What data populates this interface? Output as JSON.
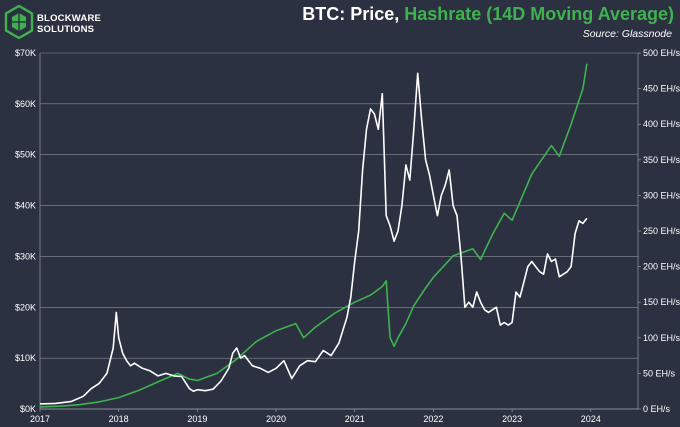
{
  "logo": {
    "line1": "BLOCKWARE",
    "line2": "SOLUTIONS",
    "icon": "blockware-logo-icon",
    "color": "#3fb24f"
  },
  "title": {
    "part1": "BTC: Price,",
    "part2": "Hashrate (14D Moving Average)"
  },
  "source": "Source: Glassnode",
  "colors": {
    "background": "#2b3140",
    "price_line": "#ffffff",
    "hashrate_line": "#3fb24f",
    "grid": "#8a8f9a"
  },
  "chart_data": {
    "type": "line",
    "title": "BTC: Price, Hashrate (14D Moving Average)",
    "x_ticks": [
      "2017",
      "2018",
      "2019",
      "2020",
      "2021",
      "2022",
      "2023",
      "2024"
    ],
    "x_range": [
      2017.0,
      2024.6
    ],
    "y_left": {
      "label": "",
      "range": [
        0,
        70000
      ],
      "ticks": [
        "$0K",
        "$10K",
        "$20K",
        "$30K",
        "$40K",
        "$50K",
        "$60K",
        "$70K"
      ]
    },
    "y_right": {
      "label": "",
      "range": [
        0,
        500
      ],
      "ticks": [
        "0 EH/s",
        "50 EH/s",
        "100 EH/s",
        "150 EH/s",
        "200 EH/s",
        "250 EH/s",
        "300 EH/s",
        "350 EH/s",
        "400 EH/s",
        "450 EH/s",
        "500 EH/s"
      ]
    },
    "grid": true,
    "legend": "none",
    "series": [
      {
        "name": "Price",
        "axis": "left",
        "x": [
          2017.0,
          2017.2,
          2017.4,
          2017.55,
          2017.65,
          2017.75,
          2017.85,
          2017.93,
          2017.97,
          2018.0,
          2018.05,
          2018.1,
          2018.15,
          2018.2,
          2018.3,
          2018.4,
          2018.5,
          2018.6,
          2018.7,
          2018.8,
          2018.9,
          2018.95,
          2019.0,
          2019.1,
          2019.2,
          2019.3,
          2019.4,
          2019.45,
          2019.5,
          2019.55,
          2019.6,
          2019.7,
          2019.8,
          2019.9,
          2020.0,
          2020.1,
          2020.2,
          2020.3,
          2020.4,
          2020.5,
          2020.6,
          2020.7,
          2020.8,
          2020.85,
          2020.9,
          2020.95,
          2021.0,
          2021.05,
          2021.1,
          2021.15,
          2021.2,
          2021.25,
          2021.3,
          2021.35,
          2021.4,
          2021.45,
          2021.5,
          2021.55,
          2021.6,
          2021.65,
          2021.7,
          2021.75,
          2021.8,
          2021.85,
          2021.9,
          2021.95,
          2022.0,
          2022.05,
          2022.1,
          2022.15,
          2022.2,
          2022.25,
          2022.3,
          2022.35,
          2022.4,
          2022.45,
          2022.5,
          2022.55,
          2022.6,
          2022.65,
          2022.7,
          2022.75,
          2022.8,
          2022.85,
          2022.9,
          2022.95,
          2023.0,
          2023.05,
          2023.1,
          2023.15,
          2023.2,
          2023.25,
          2023.3,
          2023.35,
          2023.4,
          2023.45,
          2023.5,
          2023.55,
          2023.6,
          2023.65,
          2023.7,
          2023.75,
          2023.8,
          2023.85,
          2023.9,
          2023.95
        ],
        "values": [
          1000,
          1100,
          1500,
          2500,
          4000,
          5000,
          7000,
          12000,
          19000,
          14000,
          11000,
          9500,
          8500,
          9000,
          8000,
          7500,
          6500,
          7000,
          6500,
          6400,
          4000,
          3500,
          3800,
          3600,
          3900,
          5500,
          8000,
          11000,
          12000,
          10000,
          10500,
          8500,
          8000,
          7200,
          8000,
          9500,
          6000,
          8500,
          9500,
          9300,
          11500,
          10500,
          13000,
          15500,
          18000,
          22000,
          29000,
          35000,
          47000,
          55000,
          59000,
          58000,
          55000,
          62000,
          38000,
          36000,
          33000,
          35000,
          40000,
          48000,
          45000,
          55000,
          66000,
          57000,
          49000,
          46000,
          42000,
          38000,
          42000,
          44000,
          47000,
          40000,
          38000,
          30000,
          20000,
          21000,
          20000,
          23000,
          21000,
          19500,
          19000,
          19500,
          20000,
          16500,
          17000,
          16500,
          17000,
          23000,
          22000,
          25000,
          28000,
          29000,
          28000,
          27000,
          26500,
          30500,
          29000,
          29500,
          26000,
          26500,
          27000,
          28000,
          34500,
          37000,
          36500,
          37500
        ]
      },
      {
        "name": "Hashrate (14D Moving Average)",
        "axis": "right",
        "x": [
          2017.0,
          2017.25,
          2017.5,
          2017.75,
          2018.0,
          2018.25,
          2018.5,
          2018.75,
          2018.9,
          2019.0,
          2019.25,
          2019.5,
          2019.75,
          2020.0,
          2020.25,
          2020.35,
          2020.5,
          2020.75,
          2021.0,
          2021.2,
          2021.35,
          2021.4,
          2021.45,
          2021.5,
          2021.55,
          2021.65,
          2021.75,
          2021.9,
          2022.0,
          2022.25,
          2022.5,
          2022.6,
          2022.75,
          2022.9,
          2023.0,
          2023.25,
          2023.5,
          2023.6,
          2023.75,
          2023.9,
          2023.95
        ],
        "values": [
          3,
          4,
          6,
          10,
          16,
          26,
          38,
          50,
          42,
          40,
          50,
          70,
          95,
          110,
          120,
          100,
          115,
          135,
          150,
          160,
          172,
          180,
          100,
          88,
          100,
          120,
          145,
          170,
          185,
          215,
          225,
          210,
          245,
          275,
          265,
          330,
          370,
          355,
          400,
          450,
          485
        ]
      }
    ]
  }
}
